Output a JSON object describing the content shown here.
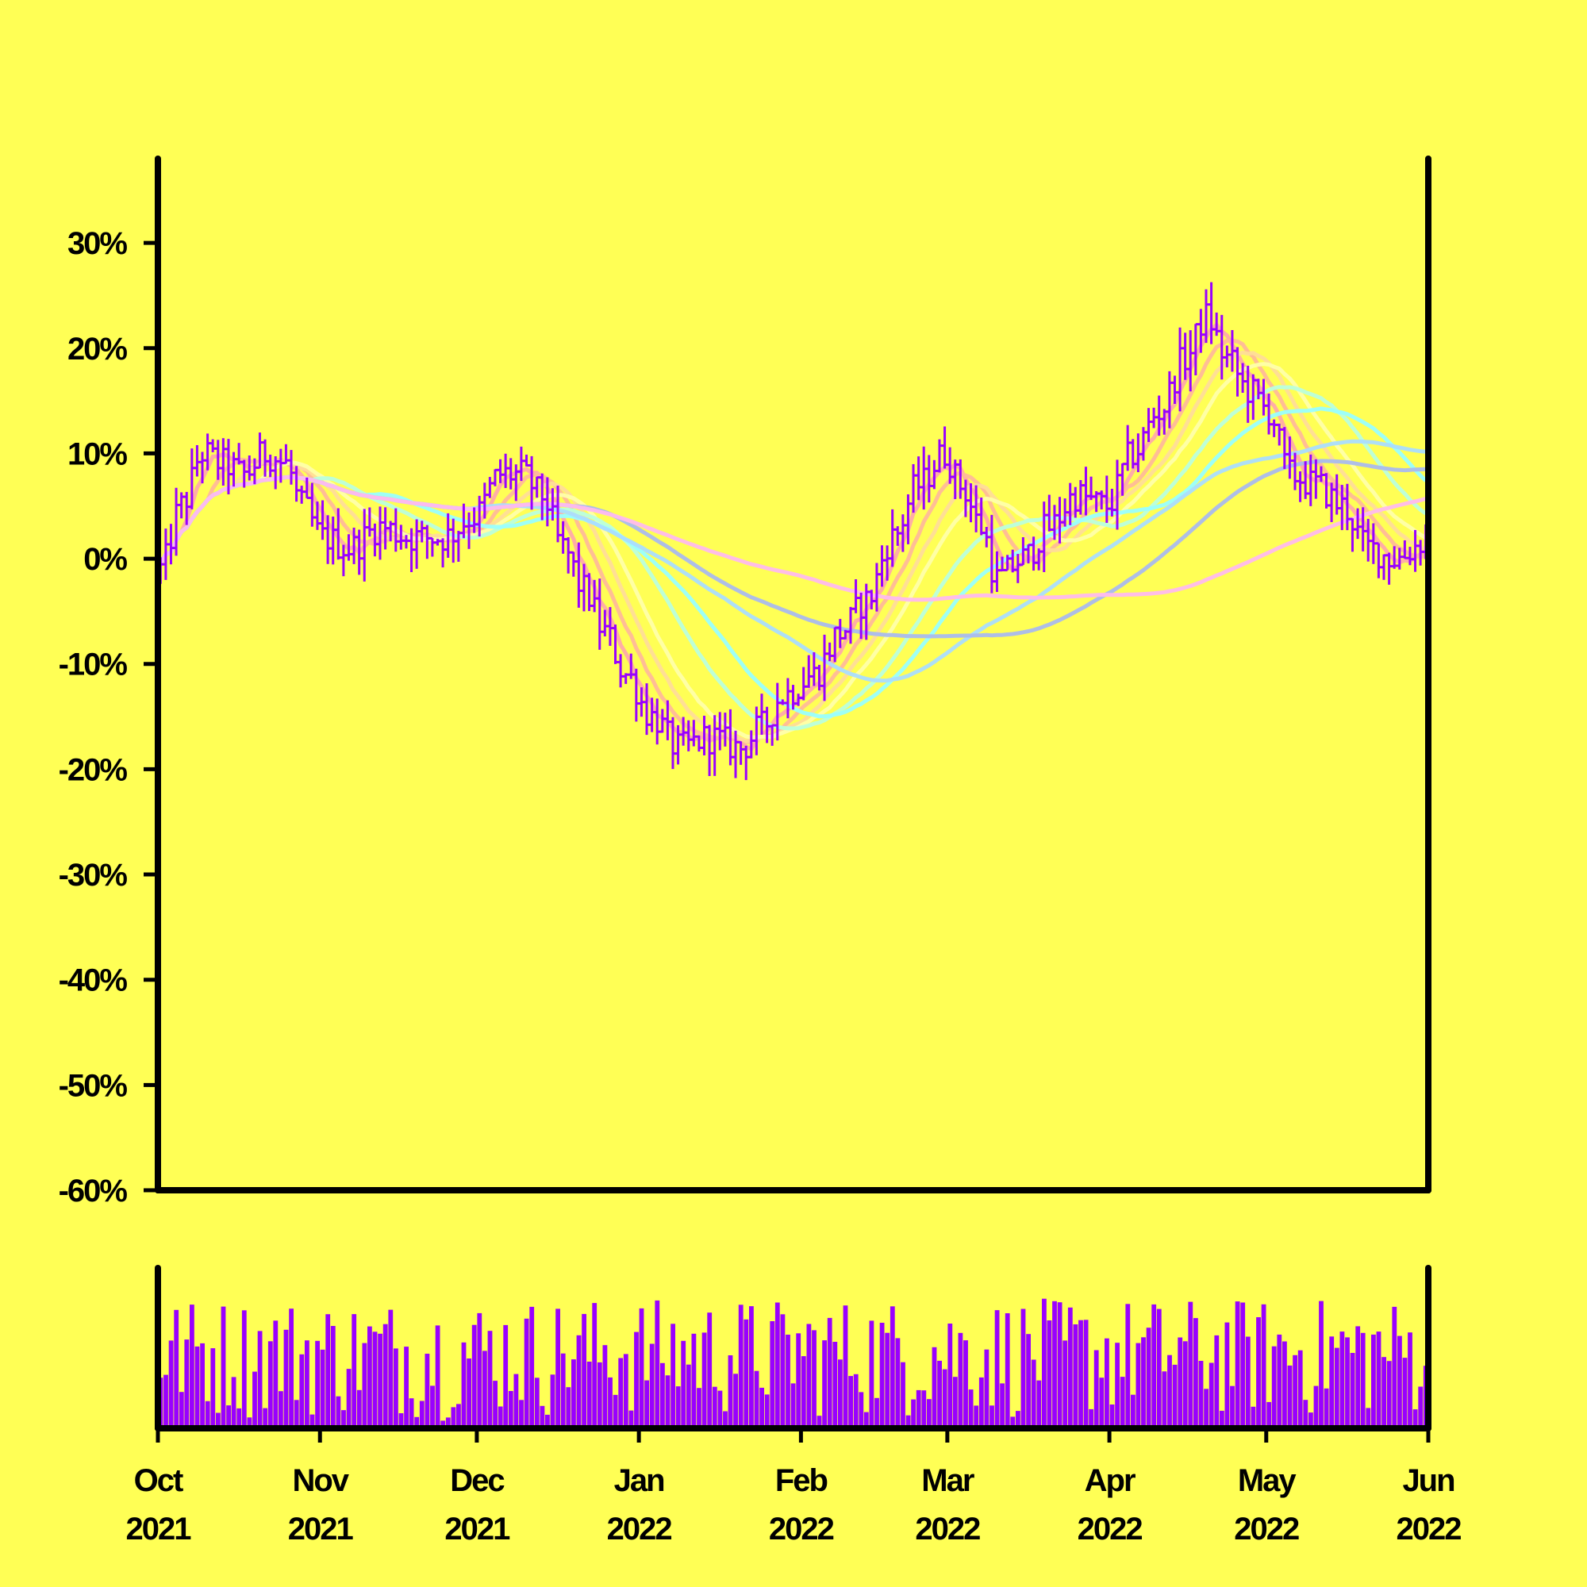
{
  "colors": {
    "background": "#ffff55",
    "axis": "#000000",
    "ohlc": "#9900ff",
    "volume": "#9900ff",
    "ma": [
      "#ffaaaa",
      "#ffbb99",
      "#ffdd99",
      "#ffffaa",
      "#bbffdd",
      "#99ffff",
      "#aaddff",
      "#aabbee",
      "#ffbbee"
    ]
  },
  "chart_data": {
    "type": "ohlc",
    "title": "",
    "xlabel": "",
    "ylabel": "",
    "ylim": [
      -60,
      38
    ],
    "y_ticks": [
      {
        "value": 30,
        "label": "30%"
      },
      {
        "value": 20,
        "label": "20%"
      },
      {
        "value": 10,
        "label": "10%"
      },
      {
        "value": 0,
        "label": "0%"
      },
      {
        "value": -10,
        "label": "-10%"
      },
      {
        "value": -20,
        "label": "-20%"
      },
      {
        "value": -30,
        "label": "-30%"
      },
      {
        "value": -40,
        "label": "-40%"
      },
      {
        "value": -50,
        "label": "-50%"
      },
      {
        "value": -60,
        "label": "-60%"
      }
    ],
    "x_range": [
      "2021-10-01",
      "2022-06-01"
    ],
    "x_ticks": [
      {
        "date": "2021-10-01",
        "month": "Oct",
        "year": "2021"
      },
      {
        "date": "2021-11-01",
        "month": "Nov",
        "year": "2021"
      },
      {
        "date": "2021-12-01",
        "month": "Dec",
        "year": "2021"
      },
      {
        "date": "2022-01-01",
        "month": "Jan",
        "year": "2022"
      },
      {
        "date": "2022-02-01",
        "month": "Feb",
        "year": "2022"
      },
      {
        "date": "2022-03-01",
        "month": "Mar",
        "year": "2022"
      },
      {
        "date": "2022-04-01",
        "month": "Apr",
        "year": "2022"
      },
      {
        "date": "2022-05-01",
        "month": "May",
        "year": "2022"
      },
      {
        "date": "2022-06-01",
        "month": "Jun",
        "year": "2022"
      }
    ],
    "grid": false,
    "price_path": [
      [
        "2021-10-01",
        -1
      ],
      [
        "2021-10-05",
        5
      ],
      [
        "2021-10-09",
        10
      ],
      [
        "2021-10-13",
        9
      ],
      [
        "2021-10-17",
        8
      ],
      [
        "2021-10-21",
        10
      ],
      [
        "2021-10-25",
        9
      ],
      [
        "2021-10-28",
        5
      ],
      [
        "2021-11-01",
        2
      ],
      [
        "2021-11-06",
        1
      ],
      [
        "2021-11-12",
        3
      ],
      [
        "2021-11-18",
        2
      ],
      [
        "2021-11-24",
        2
      ],
      [
        "2021-11-30",
        4
      ],
      [
        "2021-12-05",
        8
      ],
      [
        "2021-12-09",
        8
      ],
      [
        "2021-12-13",
        6
      ],
      [
        "2021-12-17",
        1
      ],
      [
        "2021-12-21",
        -3
      ],
      [
        "2021-12-25",
        -7
      ],
      [
        "2021-12-29",
        -11
      ],
      [
        "2022-01-03",
        -15
      ],
      [
        "2022-01-08",
        -18
      ],
      [
        "2022-01-14",
        -17
      ],
      [
        "2022-01-20",
        -18
      ],
      [
        "2022-01-24",
        -16
      ],
      [
        "2022-01-28",
        -13
      ],
      [
        "2022-02-03",
        -11
      ],
      [
        "2022-02-08",
        -7
      ],
      [
        "2022-02-13",
        -4
      ],
      [
        "2022-02-18",
        2
      ],
      [
        "2022-02-23",
        7
      ],
      [
        "2022-02-28",
        10
      ],
      [
        "2022-03-03",
        7
      ],
      [
        "2022-03-07",
        3
      ],
      [
        "2022-03-10",
        -2
      ],
      [
        "2022-03-15",
        0
      ],
      [
        "2022-03-20",
        3
      ],
      [
        "2022-03-25",
        6
      ],
      [
        "2022-03-31",
        5
      ],
      [
        "2022-04-05",
        10
      ],
      [
        "2022-04-10",
        14
      ],
      [
        "2022-04-15",
        19
      ],
      [
        "2022-04-19",
        23
      ],
      [
        "2022-04-23",
        19
      ],
      [
        "2022-04-27",
        16
      ],
      [
        "2022-05-01",
        14
      ],
      [
        "2022-05-05",
        8
      ],
      [
        "2022-05-10",
        7
      ],
      [
        "2022-05-15",
        5
      ],
      [
        "2022-05-20",
        1
      ],
      [
        "2022-05-25",
        0
      ],
      [
        "2022-06-01",
        2
      ]
    ],
    "moving_averages": [
      {
        "window": 5
      },
      {
        "window": 10
      },
      {
        "window": 15
      },
      {
        "window": 20
      },
      {
        "window": 30
      },
      {
        "window": 40
      },
      {
        "window": 60
      },
      {
        "window": 80
      },
      {
        "window": 120
      }
    ],
    "volume": {
      "ylim": [
        0,
        1
      ]
    }
  }
}
